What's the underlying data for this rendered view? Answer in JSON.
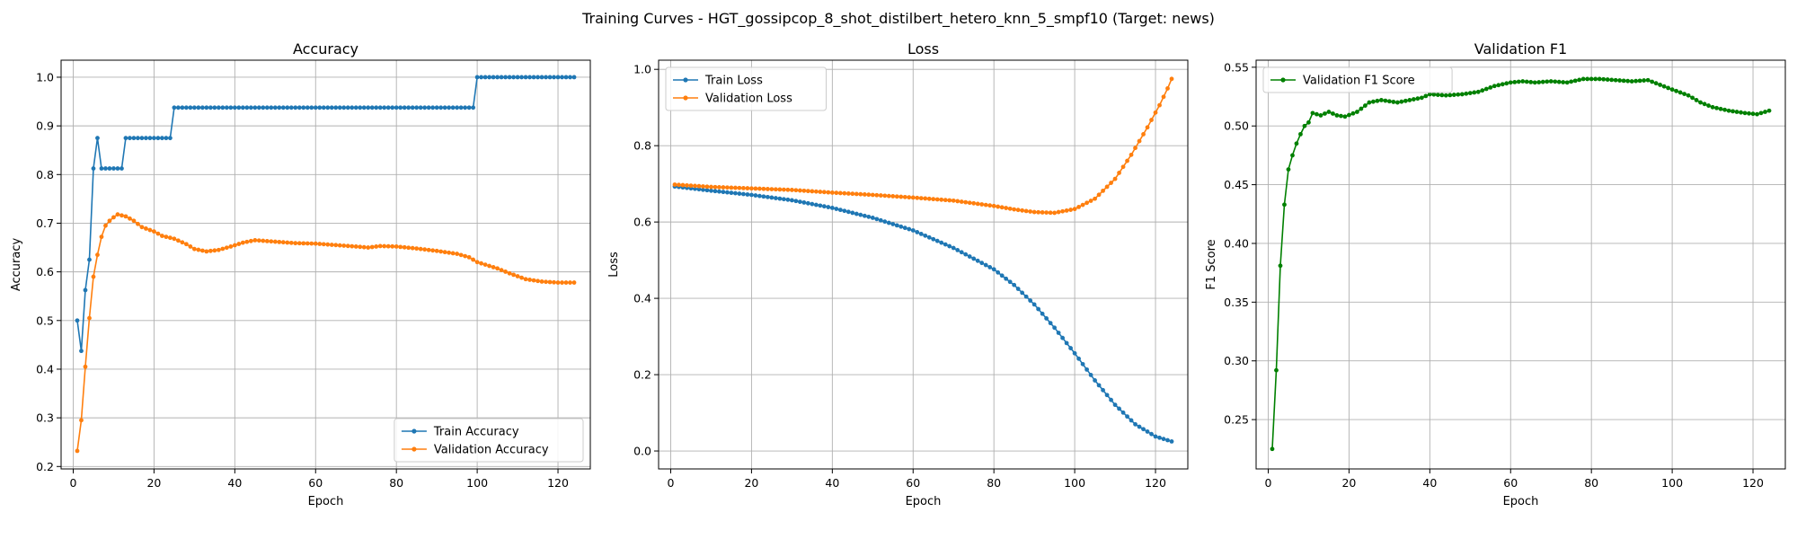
{
  "figure": {
    "suptitle": "Training Curves - HGT_gossipcop_8_shot_distilbert_hetero_knn_5_smpf10 (Target: news)"
  },
  "colors": {
    "blue": "#1f77b4",
    "orange": "#ff7f0e",
    "green": "#008000"
  },
  "chart_data": [
    {
      "type": "line",
      "title": "Accuracy",
      "xlabel": "Epoch",
      "ylabel": "Accuracy",
      "xlim": [
        -3,
        128
      ],
      "ylim": [
        0.195,
        1.035
      ],
      "xticks": [
        0,
        20,
        40,
        60,
        80,
        100,
        120
      ],
      "yticks": [
        0.2,
        0.3,
        0.4,
        0.5,
        0.6,
        0.7,
        0.8,
        0.9,
        1.0
      ],
      "ytick_labels": [
        "0.2",
        "0.3",
        "0.4",
        "0.5",
        "0.6",
        "0.7",
        "0.8",
        "0.9",
        "1.0"
      ],
      "grid": true,
      "legend_loc": "lower-right",
      "epochs": [
        1,
        124
      ],
      "series": [
        {
          "name": "Train Accuracy",
          "color": "#1f77b4",
          "points": [
            [
              1,
              0.5
            ],
            [
              2,
              0.4375
            ],
            [
              3,
              0.5625
            ],
            [
              4,
              0.625
            ],
            [
              5,
              0.8125
            ],
            [
              6,
              0.875
            ],
            [
              7,
              0.8125
            ],
            [
              12,
              0.8125
            ],
            [
              13,
              0.875
            ],
            [
              24,
              0.875
            ],
            [
              25,
              0.9375
            ],
            [
              99,
              0.9375
            ],
            [
              100,
              1.0
            ],
            [
              124,
              1.0
            ]
          ]
        },
        {
          "name": "Validation Accuracy",
          "color": "#ff7f0e",
          "points": [
            [
              1,
              0.232
            ],
            [
              2,
              0.295
            ],
            [
              3,
              0.405
            ],
            [
              4,
              0.505
            ],
            [
              5,
              0.59
            ],
            [
              6,
              0.635
            ],
            [
              7,
              0.672
            ],
            [
              8,
              0.695
            ],
            [
              9,
              0.705
            ],
            [
              10,
              0.712
            ],
            [
              11,
              0.718
            ],
            [
              13,
              0.714
            ],
            [
              15,
              0.705
            ],
            [
              17,
              0.692
            ],
            [
              20,
              0.683
            ],
            [
              22,
              0.674
            ],
            [
              25,
              0.668
            ],
            [
              28,
              0.657
            ],
            [
              30,
              0.647
            ],
            [
              33,
              0.642
            ],
            [
              36,
              0.645
            ],
            [
              39,
              0.652
            ],
            [
              42,
              0.66
            ],
            [
              45,
              0.665
            ],
            [
              50,
              0.662
            ],
            [
              55,
              0.659
            ],
            [
              60,
              0.658
            ],
            [
              65,
              0.655
            ],
            [
              70,
              0.652
            ],
            [
              73,
              0.65
            ],
            [
              76,
              0.653
            ],
            [
              80,
              0.652
            ],
            [
              85,
              0.648
            ],
            [
              90,
              0.643
            ],
            [
              95,
              0.637
            ],
            [
              98,
              0.63
            ],
            [
              100,
              0.62
            ],
            [
              105,
              0.607
            ],
            [
              108,
              0.597
            ],
            [
              112,
              0.585
            ],
            [
              116,
              0.58
            ],
            [
              120,
              0.578
            ],
            [
              124,
              0.578
            ]
          ]
        }
      ]
    },
    {
      "type": "line",
      "title": "Loss",
      "xlabel": "Epoch",
      "ylabel": "Loss",
      "xlim": [
        -3,
        128
      ],
      "ylim": [
        -0.047,
        1.024
      ],
      "xticks": [
        0,
        20,
        40,
        60,
        80,
        100,
        120
      ],
      "yticks": [
        0.0,
        0.2,
        0.4,
        0.6,
        0.8,
        1.0
      ],
      "ytick_labels": [
        "0.0",
        "0.2",
        "0.4",
        "0.6",
        "0.8",
        "1.0"
      ],
      "grid": true,
      "legend_loc": "upper-left",
      "epochs": [
        1,
        124
      ],
      "series": [
        {
          "name": "Train Loss",
          "color": "#1f77b4",
          "points": [
            [
              1,
              0.693
            ],
            [
              10,
              0.682
            ],
            [
              20,
              0.671
            ],
            [
              30,
              0.657
            ],
            [
              40,
              0.637
            ],
            [
              50,
              0.611
            ],
            [
              60,
              0.578
            ],
            [
              70,
              0.532
            ],
            [
              80,
              0.476
            ],
            [
              85,
              0.435
            ],
            [
              90,
              0.384
            ],
            [
              95,
              0.323
            ],
            [
              100,
              0.256
            ],
            [
              105,
              0.185
            ],
            [
              110,
              0.121
            ],
            [
              115,
              0.07
            ],
            [
              120,
              0.038
            ],
            [
              124,
              0.025
            ]
          ]
        },
        {
          "name": "Validation Loss",
          "color": "#ff7f0e",
          "points": [
            [
              1,
              0.698
            ],
            [
              10,
              0.692
            ],
            [
              20,
              0.688
            ],
            [
              30,
              0.684
            ],
            [
              40,
              0.677
            ],
            [
              50,
              0.671
            ],
            [
              60,
              0.664
            ],
            [
              70,
              0.656
            ],
            [
              80,
              0.642
            ],
            [
              85,
              0.633
            ],
            [
              90,
              0.626
            ],
            [
              95,
              0.624
            ],
            [
              100,
              0.634
            ],
            [
              105,
              0.661
            ],
            [
              110,
              0.713
            ],
            [
              114,
              0.776
            ],
            [
              118,
              0.848
            ],
            [
              121,
              0.906
            ],
            [
              123,
              0.95
            ],
            [
              124,
              0.975
            ]
          ]
        }
      ]
    },
    {
      "type": "line",
      "title": "Validation F1",
      "xlabel": "Epoch",
      "ylabel": "F1 Score",
      "xlim": [
        -3,
        128
      ],
      "ylim": [
        0.208,
        0.556
      ],
      "xticks": [
        0,
        20,
        40,
        60,
        80,
        100,
        120
      ],
      "yticks": [
        0.25,
        0.3,
        0.35,
        0.4,
        0.45,
        0.5,
        0.55
      ],
      "ytick_labels": [
        "0.25",
        "0.30",
        "0.35",
        "0.40",
        "0.45",
        "0.50",
        "0.55"
      ],
      "grid": true,
      "legend_loc": "upper-left",
      "epochs": [
        1,
        124
      ],
      "series": [
        {
          "name": "Validation F1 Score",
          "color": "#008000",
          "points": [
            [
              1,
              0.225
            ],
            [
              2,
              0.292
            ],
            [
              3,
              0.381
            ],
            [
              4,
              0.433
            ],
            [
              5,
              0.463
            ],
            [
              6,
              0.475
            ],
            [
              7,
              0.485
            ],
            [
              8,
              0.493
            ],
            [
              9,
              0.5
            ],
            [
              10,
              0.503
            ],
            [
              11,
              0.511
            ],
            [
              13,
              0.509
            ],
            [
              15,
              0.512
            ],
            [
              17,
              0.509
            ],
            [
              19,
              0.508
            ],
            [
              22,
              0.512
            ],
            [
              25,
              0.52
            ],
            [
              28,
              0.522
            ],
            [
              32,
              0.52
            ],
            [
              35,
              0.522
            ],
            [
              38,
              0.524
            ],
            [
              40,
              0.527
            ],
            [
              44,
              0.526
            ],
            [
              48,
              0.527
            ],
            [
              52,
              0.529
            ],
            [
              56,
              0.534
            ],
            [
              60,
              0.537
            ],
            [
              63,
              0.538
            ],
            [
              66,
              0.537
            ],
            [
              70,
              0.538
            ],
            [
              74,
              0.537
            ],
            [
              78,
              0.54
            ],
            [
              82,
              0.54
            ],
            [
              86,
              0.539
            ],
            [
              90,
              0.538
            ],
            [
              94,
              0.539
            ],
            [
              97,
              0.535
            ],
            [
              100,
              0.531
            ],
            [
              104,
              0.526
            ],
            [
              107,
              0.52
            ],
            [
              110,
              0.516
            ],
            [
              114,
              0.513
            ],
            [
              118,
              0.511
            ],
            [
              121,
              0.51
            ],
            [
              124,
              0.513
            ]
          ]
        }
      ]
    }
  ]
}
